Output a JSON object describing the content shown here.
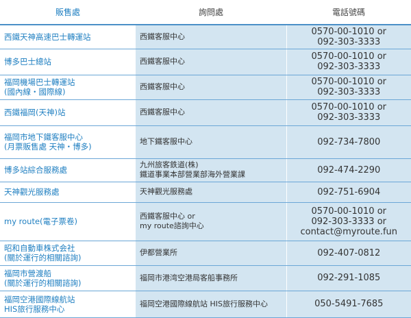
{
  "headers": [
    "販售處",
    "詢問處",
    "電話號碼"
  ],
  "rows": [
    {
      "location": [
        "西鐵天神高速巴士轉運站"
      ],
      "inquiry": [
        "西鐵客服中心"
      ],
      "phone": [
        "0570-00-1010 or",
        "092-303-3333"
      ]
    },
    {
      "location": [
        "博多巴士總站"
      ],
      "inquiry": [
        "西鐵客服中心"
      ],
      "phone": [
        "0570-00-1010 or",
        "092-303-3333"
      ]
    },
    {
      "location": [
        "福岡機場巴士轉運站",
        "(國內線・國際線)"
      ],
      "inquiry": [
        "西鐵客服中心"
      ],
      "phone": [
        "0570-00-1010 or",
        "092-303-3333"
      ]
    },
    {
      "location": [
        "西鐵福岡(天神)站"
      ],
      "inquiry": [
        "西鐵客服中心"
      ],
      "phone": [
        "0570-00-1010 or",
        "092-303-3333"
      ]
    },
    {
      "location": [
        "福岡市地下鐵客服中心",
        "(月票販售處 天神・博多)"
      ],
      "inquiry": [
        "地下鐵客服中心"
      ],
      "phone": [
        "092-734-7800"
      ]
    },
    {
      "location": [
        "博多站綜合服務處"
      ],
      "inquiry": [
        "九州旅客鉄道(株)",
        "鐵道事業本部營業部海外營業課"
      ],
      "phone": [
        "092-474-2290"
      ]
    },
    {
      "location": [
        "天神觀光服務處"
      ],
      "inquiry": [
        "天神觀光服務處"
      ],
      "phone": [
        "092-751-6904"
      ]
    },
    {
      "location": [
        "my route(電子票卷)"
      ],
      "inquiry": [
        "西鐵客服中心 or",
        "my route諮詢中心"
      ],
      "phone": [
        "0570-00-1010 or",
        "092-303-3333  or",
        "contact@myroute.fun"
      ]
    },
    {
      "location": [
        "昭和自動車株式会社",
        "(關於運行的相關諮詢)"
      ],
      "inquiry": [
        "伊都營業所"
      ],
      "phone": [
        "092-407-0812"
      ]
    },
    {
      "location": [
        "福岡市營渡船",
        "(關於運行的相關諮詢)"
      ],
      "inquiry": [
        "福岡市港湾空港局客船事務所"
      ],
      "phone": [
        "092-291-1085"
      ]
    },
    {
      "location": [
        "福岡空港國際線航站",
        "HIS旅行服務中心"
      ],
      "inquiry": [
        "福岡空港國際線航站 HIS旅行服務中心"
      ],
      "phone": [
        "050-5491-7685"
      ]
    }
  ]
}
